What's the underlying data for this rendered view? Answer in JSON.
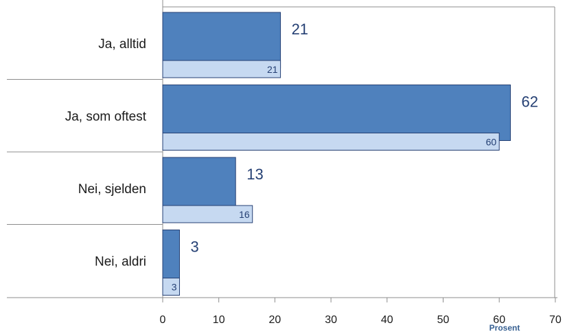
{
  "chart_data": {
    "type": "bar",
    "orientation": "horizontal",
    "categories": [
      "Ja, alltid",
      "Ja, som oftest",
      "Nei, sjelden",
      "Nei, aldri"
    ],
    "series": [
      {
        "values": [
          21,
          62,
          13,
          3
        ],
        "color": "#4f81bd",
        "edge": "#243f73"
      },
      {
        "values": [
          21,
          60,
          16,
          3
        ],
        "color": "#c6d9f1",
        "edge": "#243f73"
      }
    ],
    "xlim": [
      0,
      70
    ],
    "xticks": [
      0,
      10,
      20,
      30,
      40,
      50,
      60,
      70
    ],
    "xlabel": "Prosent",
    "title": "",
    "grid": false,
    "legend": "none"
  }
}
